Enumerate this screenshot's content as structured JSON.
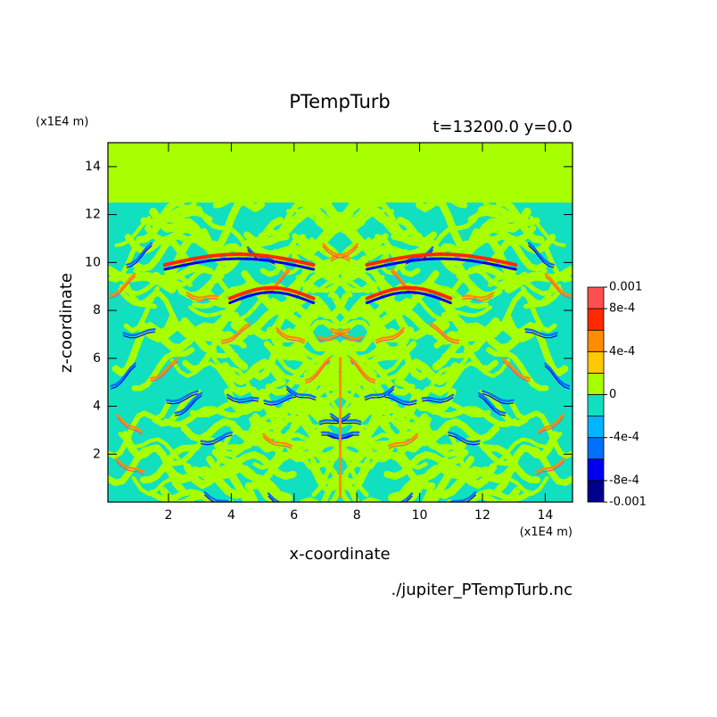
{
  "chart_data": {
    "type": "contour",
    "title": "PTempTurb",
    "subtitle": "t=13200.0 y=0.0",
    "x_label": "x-coordinate",
    "y_label": "z-coordinate",
    "x_unit": "(x1E4 m)",
    "y_unit": "(x1E4 m)",
    "source": "./jupiter_PTempTurb.nc",
    "xlim": [
      0.07,
      14.87
    ],
    "ylim": [
      0,
      15
    ],
    "xticks": [
      2,
      4,
      6,
      8,
      10,
      12,
      14
    ],
    "yticks": [
      2,
      4,
      6,
      8,
      10,
      12,
      14
    ],
    "colorbar": {
      "levels": [
        -0.001,
        -0.0008,
        -0.0006,
        -0.0004,
        -0.0002,
        0,
        0.0002,
        0.0004,
        0.0006,
        0.0008,
        0.001
      ],
      "colors": [
        "#00008c",
        "#0000f0",
        "#0070ff",
        "#00b4ff",
        "#10e0c0",
        "#a8ff00",
        "#ffc800",
        "#ff8c00",
        "#ff2a00",
        "#ff4f4f"
      ],
      "ticks": [
        -0.001,
        {
          "value": -0.0008,
          "label": "-8e-4"
        },
        {
          "value": -0.0004,
          "label": "-4e-4"
        },
        0,
        {
          "value": 0.0004,
          "label": "4e-4"
        },
        {
          "value": 0.0008,
          "label": "8e-4"
        },
        0.001
      ]
    }
  }
}
